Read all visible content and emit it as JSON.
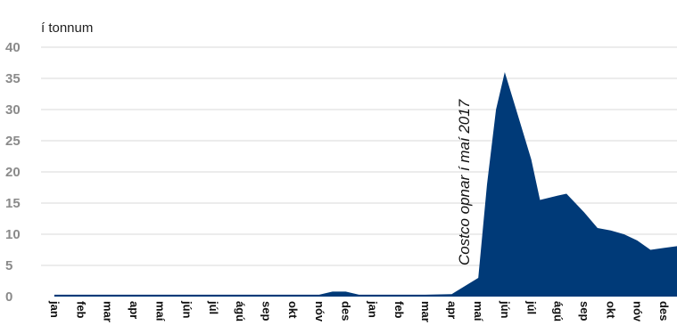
{
  "chart_data": {
    "type": "area",
    "ylabel": "í tonnum",
    "ylim": [
      0,
      40
    ],
    "yticks": [
      0,
      5,
      10,
      15,
      20,
      25,
      30,
      35,
      40
    ],
    "grid": true,
    "color": "#003a78",
    "categories": [
      "jan",
      "feb",
      "mar",
      "apr",
      "maí",
      "jún",
      "júl",
      "ágú",
      "sep",
      "okt",
      "nóv",
      "des",
      "jan",
      "feb",
      "mar",
      "apr",
      "maí",
      "jún",
      "júl",
      "ágú",
      "sep",
      "okt",
      "nóv",
      "des"
    ],
    "tick_labels": [
      "jan",
      "feb",
      "mar",
      "apr",
      "maí",
      "jún",
      "júl",
      "ágú",
      "sep",
      "okt",
      "nóv",
      "des",
      "jan",
      "feb",
      "mar",
      "apr",
      "maí",
      "jún",
      "júl",
      "ágú",
      "sep",
      "okt",
      "nóv",
      "des"
    ],
    "points": [
      {
        "x": 0,
        "y": 0.3
      },
      {
        "x": 1,
        "y": 0.3
      },
      {
        "x": 2,
        "y": 0.3
      },
      {
        "x": 3,
        "y": 0.3
      },
      {
        "x": 4,
        "y": 0.3
      },
      {
        "x": 5,
        "y": 0.3
      },
      {
        "x": 6,
        "y": 0.3
      },
      {
        "x": 7,
        "y": 0.3
      },
      {
        "x": 8,
        "y": 0.3
      },
      {
        "x": 9,
        "y": 0.3
      },
      {
        "x": 10,
        "y": 0.3
      },
      {
        "x": 10.5,
        "y": 0.8
      },
      {
        "x": 11,
        "y": 0.8
      },
      {
        "x": 11.5,
        "y": 0.3
      },
      {
        "x": 12,
        "y": 0.3
      },
      {
        "x": 13,
        "y": 0.3
      },
      {
        "x": 14,
        "y": 0.3
      },
      {
        "x": 15,
        "y": 0.4
      },
      {
        "x": 16,
        "y": 3.0
      },
      {
        "x": 16.33,
        "y": 18.0
      },
      {
        "x": 16.67,
        "y": 30.0
      },
      {
        "x": 17,
        "y": 36.0
      },
      {
        "x": 17.5,
        "y": 29.0
      },
      {
        "x": 18,
        "y": 22.0
      },
      {
        "x": 18.33,
        "y": 15.5
      },
      {
        "x": 19,
        "y": 16.2
      },
      {
        "x": 19.33,
        "y": 16.5
      },
      {
        "x": 20,
        "y": 13.5
      },
      {
        "x": 20.5,
        "y": 11.0
      },
      {
        "x": 21,
        "y": 10.6
      },
      {
        "x": 21.5,
        "y": 10.0
      },
      {
        "x": 22,
        "y": 9.0
      },
      {
        "x": 22.5,
        "y": 7.5
      },
      {
        "x": 23,
        "y": 7.8
      },
      {
        "x": 23.67,
        "y": 8.2
      }
    ],
    "annotations": [
      {
        "text": "Costco opnar í maí 2017",
        "x": 16
      }
    ]
  }
}
